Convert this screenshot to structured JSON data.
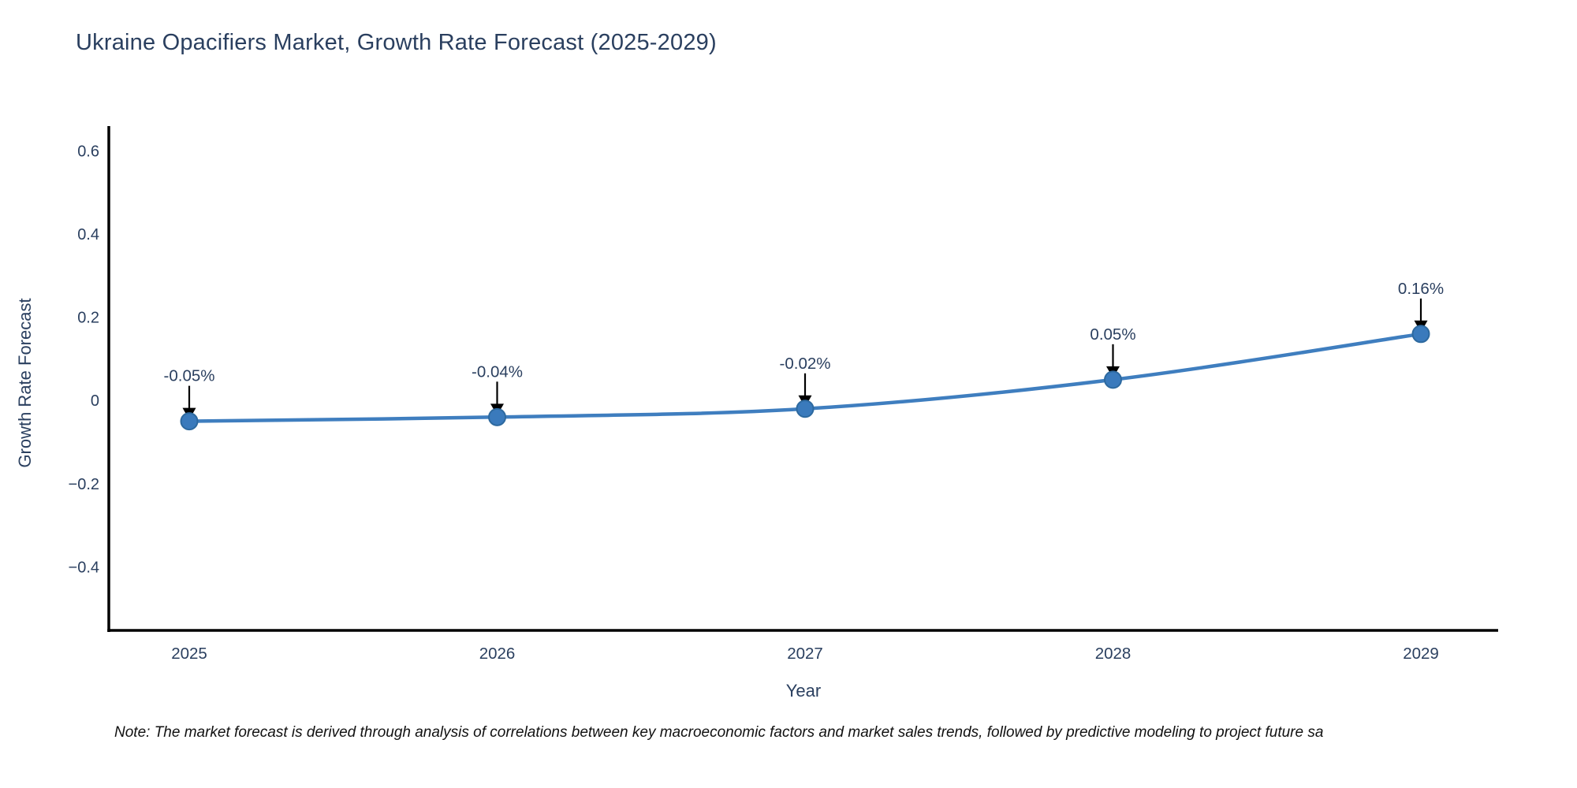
{
  "note": "Note: The market forecast is derived through analysis of correlations between key macroeconomic factors and market sales trends, followed by predictive modeling to project future sa",
  "chart_data": {
    "type": "line",
    "title": "Ukraine Opacifiers Market, Growth Rate Forecast (2025-2029)",
    "xlabel": "Year",
    "ylabel": "Growth Rate Forecast",
    "categories": [
      2025,
      2026,
      2027,
      2028,
      2029
    ],
    "x_tick_labels": [
      "2025",
      "2026",
      "2027",
      "2028",
      "2029"
    ],
    "series": [
      {
        "name": "Growth Rate Forecast",
        "values": [
          -0.05,
          -0.04,
          -0.02,
          0.05,
          0.16
        ]
      }
    ],
    "point_labels": [
      "-0.05%",
      "-0.04%",
      "-0.02%",
      "0.05%",
      "0.16%"
    ],
    "y_tick_values": [
      0.6,
      0.4,
      0.2,
      0,
      -0.2,
      -0.4
    ],
    "y_tick_labels": [
      "0.6",
      "0.4",
      "0.2",
      "0",
      "−0.2",
      "−0.4"
    ],
    "ylim": [
      -0.553,
      0.66
    ],
    "grid": false,
    "legend": "none",
    "line_shape": "spline",
    "colors": {
      "line": "#3f7ebf",
      "marker_fill": "#3a7abc",
      "marker_edge": "#2d699f",
      "axis": "#000000",
      "tick_text": "#2a3f5f",
      "annotation_text": "#2a3f5f",
      "annotation_arrow": "#000000",
      "title_text": "#2a3f5f",
      "note_text": "#111111"
    }
  }
}
